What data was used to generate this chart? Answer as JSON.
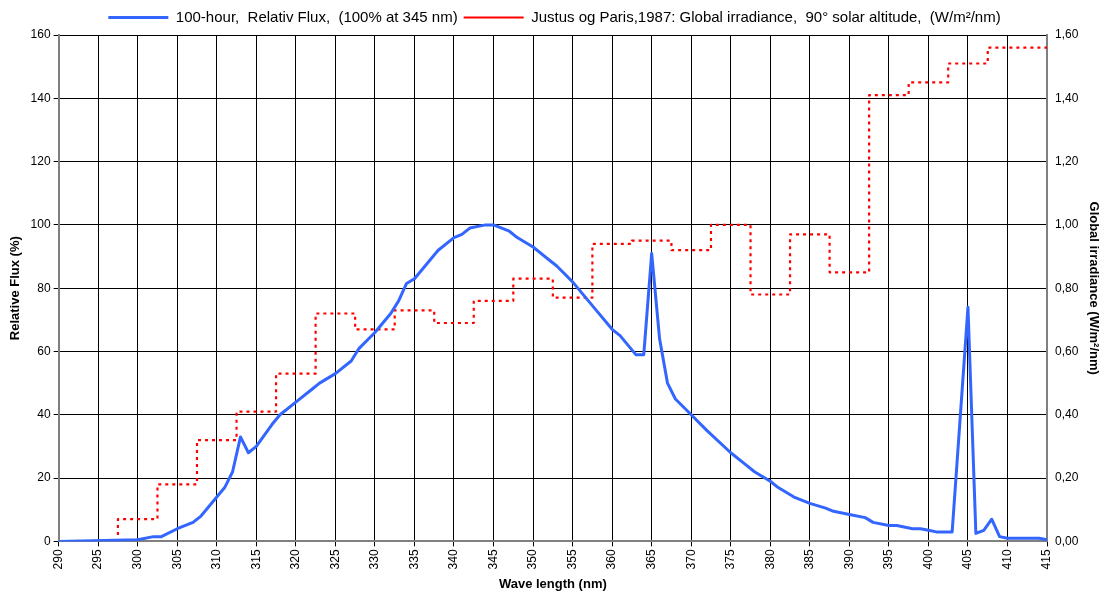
{
  "chart_data": {
    "type": "line",
    "xlabel": "Wave length (nm)",
    "ylabel": "Relative Flux (%)",
    "y2label": "Global irradiance (W/m²/nm)",
    "xlim": [
      290,
      415
    ],
    "xticks": [
      290,
      295,
      300,
      305,
      310,
      315,
      320,
      325,
      330,
      335,
      340,
      345,
      350,
      355,
      360,
      365,
      370,
      375,
      380,
      385,
      390,
      395,
      400,
      405,
      410,
      415
    ],
    "ylim": [
      0,
      160
    ],
    "yticks": [
      0,
      20,
      40,
      60,
      80,
      100,
      120,
      140,
      160
    ],
    "y2lim": [
      0,
      1.6
    ],
    "y2ticks": [
      {
        "value": 0,
        "label": "0,00"
      },
      {
        "value": 0.2,
        "label": "0,20"
      },
      {
        "value": 0.4,
        "label": "0,40"
      },
      {
        "value": 0.6,
        "label": "0,60"
      },
      {
        "value": 0.8,
        "label": "0,80"
      },
      {
        "value": 1,
        "label": "1,00"
      },
      {
        "value": 1.2,
        "label": "1,20"
      },
      {
        "value": 1.4,
        "label": "1,40"
      },
      {
        "value": 1.6,
        "label": "1,60"
      }
    ],
    "grid": true,
    "legend": "top",
    "marker": "none",
    "series": [
      {
        "name": "100-hour,  Relativ Flux,  (100% at 345 nm)",
        "color": "#3366ff",
        "line_style": "solid",
        "x": [
          290,
          300,
          302,
          303,
          305,
          307,
          308,
          310,
          311,
          312,
          313,
          314,
          315,
          317,
          318,
          320,
          322,
          323,
          325,
          327,
          328,
          330,
          332,
          333,
          334,
          335,
          337,
          338,
          340,
          341,
          342,
          344,
          345,
          347,
          348,
          350,
          352,
          353,
          355,
          357,
          358,
          360,
          361,
          363,
          364,
          365,
          366,
          367,
          368,
          370,
          372,
          375,
          377,
          378,
          380,
          381,
          383,
          385,
          387,
          388,
          390,
          392,
          393,
          395,
          396,
          398,
          399,
          400,
          401,
          403,
          405,
          406,
          407,
          408,
          409,
          410,
          413,
          414,
          415
        ],
        "values": [
          0,
          0.5,
          1.5,
          1.5,
          4,
          6,
          8,
          14,
          17,
          22,
          33,
          28,
          30,
          37,
          40,
          44,
          48,
          50,
          53,
          57,
          61,
          66,
          72,
          76,
          81.5,
          83,
          89,
          92,
          96,
          97,
          99,
          100,
          100,
          98,
          96,
          93,
          89,
          87,
          82,
          76,
          73,
          67,
          65,
          59,
          59,
          91,
          64,
          50,
          45,
          40,
          35,
          28,
          24,
          22,
          19,
          17,
          14,
          12,
          10.5,
          9.5,
          8.5,
          7.5,
          6,
          5,
          5,
          4,
          4,
          3.5,
          3,
          3,
          74,
          2.5,
          3.5,
          7,
          1.5,
          1,
          1,
          1,
          0.5
        ]
      },
      {
        "name": "Justus og Paris,1987: Global irradiance,  90° solar altitude,  (W/m²/nm)",
        "color": "#ff0000",
        "type": "step",
        "axis": "y2",
        "line_style": "dotted",
        "x": [
          297.5,
          302.5,
          307.5,
          312.5,
          317.5,
          322.5,
          327.5,
          332.5,
          337.5,
          342.5,
          347.5,
          352.5,
          357.5,
          362.5,
          367.5,
          372.5,
          377.5,
          382.5,
          387.5,
          392.5,
          397.5,
          402.5,
          407.5,
          412.5,
          415
        ],
        "values": [
          0.02,
          0.07,
          0.18,
          0.32,
          0.41,
          0.53,
          0.72,
          0.67,
          0.73,
          0.69,
          0.76,
          0.83,
          0.77,
          0.94,
          0.95,
          0.92,
          1.0,
          0.78,
          0.97,
          0.85,
          1.41,
          1.45,
          1.51,
          1.56,
          1.56
        ]
      }
    ]
  }
}
